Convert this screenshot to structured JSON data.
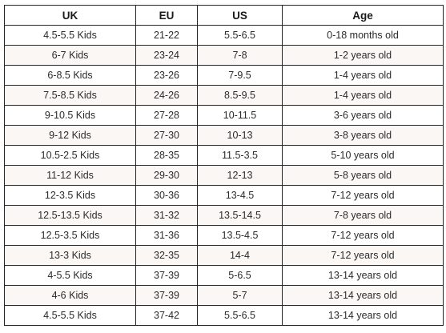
{
  "headers": [
    "UK",
    "EU",
    "US",
    "Age"
  ],
  "rows": [
    [
      "4.5-5.5 Kids",
      "21-22",
      "5.5-6.5",
      "0-18 months old"
    ],
    [
      "6-7 Kids",
      "23-24",
      "7-8",
      "1-2 years old"
    ],
    [
      "6-8.5 Kids",
      "23-26",
      "7-9.5",
      "1-4 years old"
    ],
    [
      "7.5-8.5 Kids",
      "24-26",
      "8.5-9.5",
      "1-4 years old"
    ],
    [
      "9-10.5 Kids",
      "27-28",
      "10-11.5",
      "3-6 years old"
    ],
    [
      "9-12 Kids",
      "27-30",
      "10-13",
      "3-8 years old"
    ],
    [
      "10.5-2.5 Kids",
      "28-35",
      "11.5-3.5",
      "5-10 years old"
    ],
    [
      "11-12 Kids",
      "29-30",
      "12-13",
      "5-8 years old"
    ],
    [
      "12-3.5 Kids",
      "30-36",
      "13-4.5",
      "7-12 years old"
    ],
    [
      "12.5-13.5 Kids",
      "31-32",
      "13.5-14.5",
      "7-8 years old"
    ],
    [
      "12.5-3.5 Kids",
      "31-36",
      "13.5-4.5",
      "7-12 years old"
    ],
    [
      "13-3 Kids",
      "32-35",
      "14-4",
      "7-12 years old"
    ],
    [
      "4-5.5 Kids",
      "37-39",
      "5-6.5",
      "13-14 years old"
    ],
    [
      "4-6 Kids",
      "37-39",
      "5-7",
      "13-14 years old"
    ],
    [
      "4.5-5.5 Kids",
      "37-42",
      "5.5-6.5",
      "13-14 years old"
    ]
  ]
}
